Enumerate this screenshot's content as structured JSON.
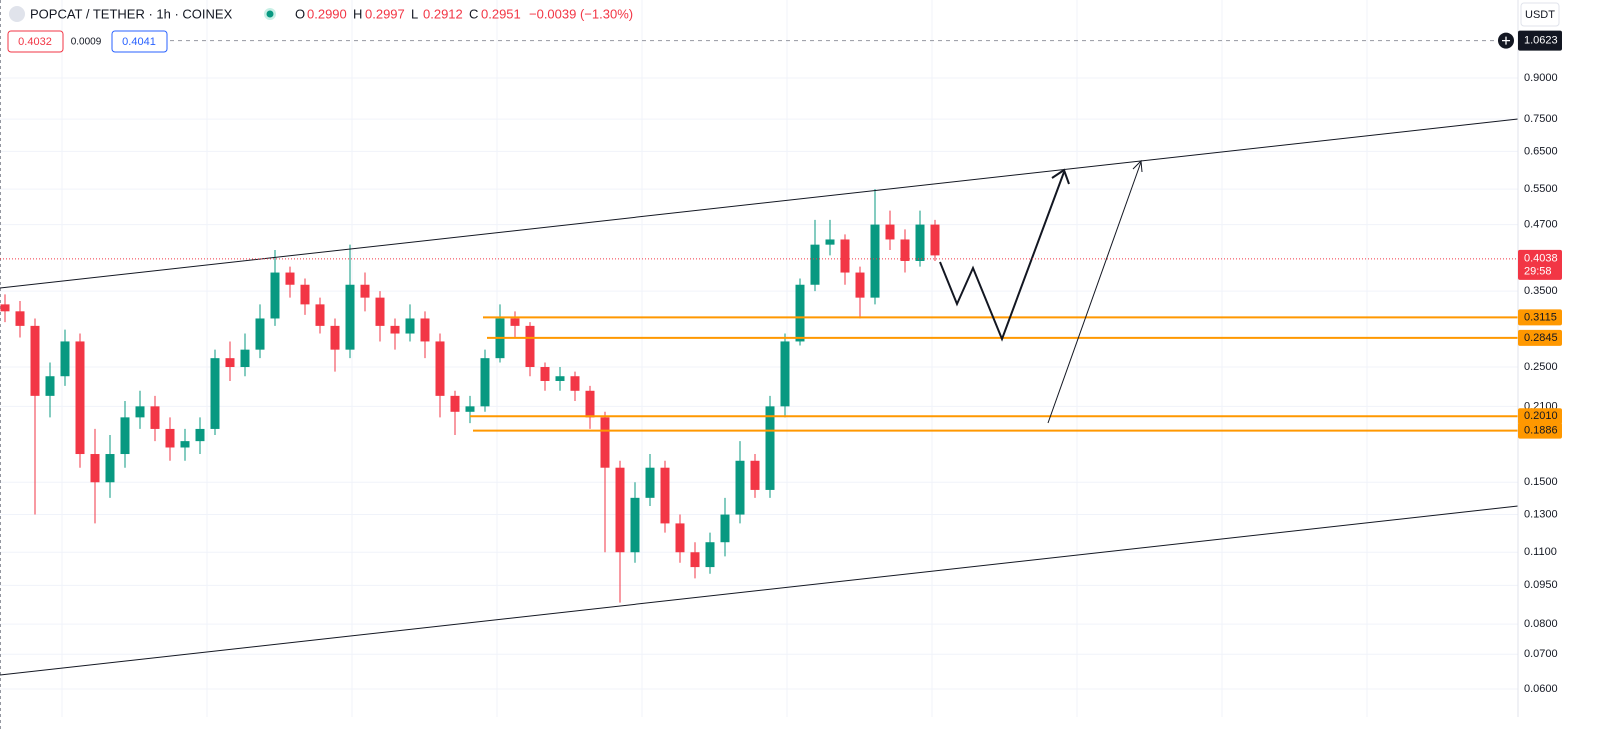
{
  "chart_data": {
    "type": "candlestick",
    "title": "POPCAT / TETHER · 1h · COINEX",
    "legend_fields": [
      {
        "key": "O",
        "value": "0.2990"
      },
      {
        "key": "H",
        "value": "0.2997"
      },
      {
        "key": "L",
        "value": "0.2912"
      },
      {
        "key": "C",
        "value": "0.2951"
      }
    ],
    "change": "−0.0039 (−1.30%)",
    "sell_price": "0.4032",
    "spread": "0.0009",
    "buy_price": "0.4041",
    "currency": "USDT",
    "log_scale": true,
    "grid": true,
    "up_color": "#089981",
    "down_color": "#f23645",
    "ylim": [
      0.053,
      1.2717
    ],
    "yticks": [
      {
        "value": 0.9,
        "label": "0.9000"
      },
      {
        "value": 0.75,
        "label": "0.7500"
      },
      {
        "value": 0.65,
        "label": "0.6500"
      },
      {
        "value": 0.55,
        "label": "0.5500"
      },
      {
        "value": 0.47,
        "label": "0.4700"
      },
      {
        "value": 0.35,
        "label": "0.3500"
      },
      {
        "value": 0.25,
        "label": "0.2500"
      },
      {
        "value": 0.21,
        "label": "0.2100"
      },
      {
        "value": 0.15,
        "label": "0.1500"
      },
      {
        "value": 0.13,
        "label": "0.1300"
      },
      {
        "value": 0.11,
        "label": "0.1100"
      },
      {
        "value": 0.095,
        "label": "0.0950"
      },
      {
        "value": 0.08,
        "label": "0.0800"
      },
      {
        "value": 0.07,
        "label": "0.0700"
      },
      {
        "value": 0.06,
        "label": "0.0600"
      }
    ],
    "open": [
      0.33,
      0.32,
      0.3,
      0.22,
      0.24,
      0.28,
      0.17,
      0.15,
      0.17,
      0.2,
      0.21,
      0.19,
      0.175,
      0.18,
      0.19,
      0.26,
      0.25,
      0.27,
      0.31,
      0.38,
      0.36,
      0.33,
      0.3,
      0.27,
      0.36,
      0.34,
      0.3,
      0.29,
      0.31,
      0.28,
      0.22,
      0.205,
      0.21,
      0.26,
      0.31,
      0.3,
      0.25,
      0.235,
      0.24,
      0.225,
      0.2,
      0.16,
      0.11,
      0.14,
      0.16,
      0.125,
      0.11,
      0.103,
      0.115,
      0.13,
      0.165,
      0.145,
      0.21,
      0.28,
      0.36,
      0.43,
      0.44,
      0.38,
      0.34,
      0.47,
      0.44,
      0.4,
      0.47
    ],
    "high": [
      0.345,
      0.335,
      0.31,
      0.255,
      0.295,
      0.29,
      0.19,
      0.185,
      0.215,
      0.225,
      0.22,
      0.2,
      0.19,
      0.2,
      0.27,
      0.28,
      0.29,
      0.33,
      0.42,
      0.39,
      0.37,
      0.34,
      0.31,
      0.43,
      0.38,
      0.35,
      0.31,
      0.33,
      0.32,
      0.29,
      0.225,
      0.22,
      0.27,
      0.33,
      0.32,
      0.305,
      0.255,
      0.25,
      0.245,
      0.23,
      0.205,
      0.165,
      0.15,
      0.17,
      0.165,
      0.13,
      0.115,
      0.12,
      0.14,
      0.18,
      0.17,
      0.22,
      0.29,
      0.37,
      0.48,
      0.48,
      0.45,
      0.39,
      0.55,
      0.5,
      0.46,
      0.5,
      0.48
    ],
    "low": [
      0.305,
      0.285,
      0.13,
      0.2,
      0.23,
      0.16,
      0.125,
      0.14,
      0.16,
      0.19,
      0.18,
      0.165,
      0.165,
      0.17,
      0.185,
      0.235,
      0.24,
      0.26,
      0.3,
      0.34,
      0.315,
      0.29,
      0.245,
      0.26,
      0.32,
      0.28,
      0.27,
      0.28,
      0.26,
      0.2,
      0.185,
      0.195,
      0.205,
      0.255,
      0.285,
      0.24,
      0.225,
      0.225,
      0.215,
      0.19,
      0.11,
      0.088,
      0.105,
      0.135,
      0.12,
      0.105,
      0.098,
      0.1,
      0.108,
      0.125,
      0.14,
      0.14,
      0.2,
      0.275,
      0.35,
      0.41,
      0.36,
      0.31,
      0.33,
      0.42,
      0.38,
      0.39,
      0.4
    ],
    "close": [
      0.32,
      0.3,
      0.22,
      0.24,
      0.28,
      0.17,
      0.15,
      0.17,
      0.2,
      0.21,
      0.19,
      0.175,
      0.18,
      0.19,
      0.26,
      0.25,
      0.27,
      0.31,
      0.38,
      0.36,
      0.33,
      0.3,
      0.27,
      0.36,
      0.34,
      0.3,
      0.29,
      0.31,
      0.28,
      0.22,
      0.205,
      0.21,
      0.26,
      0.31,
      0.3,
      0.25,
      0.235,
      0.24,
      0.225,
      0.2,
      0.16,
      0.11,
      0.14,
      0.16,
      0.125,
      0.11,
      0.103,
      0.115,
      0.13,
      0.165,
      0.145,
      0.21,
      0.28,
      0.36,
      0.43,
      0.44,
      0.38,
      0.34,
      0.47,
      0.44,
      0.4,
      0.47,
      0.41
    ],
    "last_price": 0.4038,
    "countdown": "29:58",
    "top_price": 1.0623,
    "levels": [
      0.3115,
      0.2845,
      {
        "value": 0.201,
        "label": "0.2010"
      },
      0.1886
    ],
    "level_color": "#ff9800"
  }
}
